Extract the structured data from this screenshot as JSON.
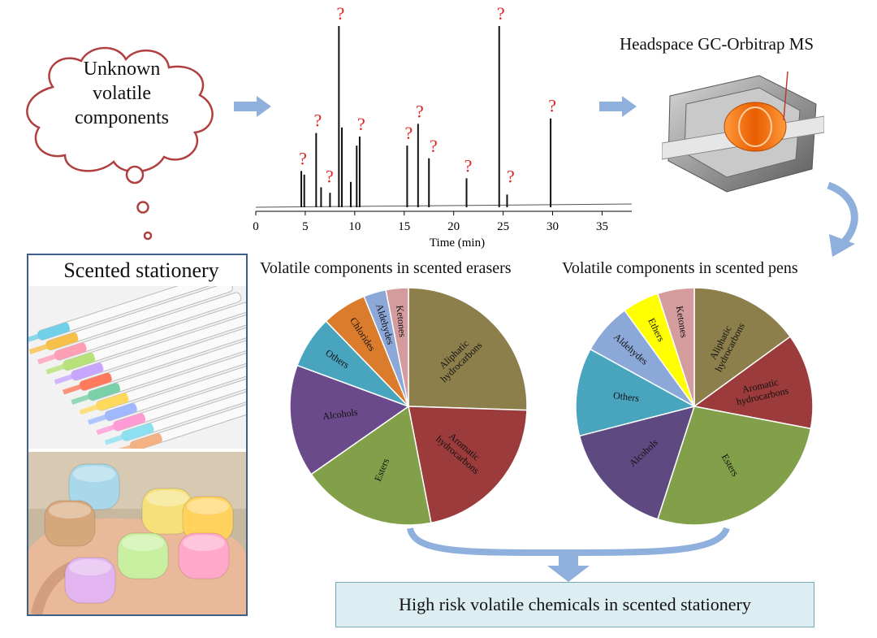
{
  "cloud": {
    "lines": [
      "Unknown",
      "volatile",
      "components"
    ]
  },
  "chromatogram": {
    "xlabel": "Time (min)",
    "xticks": [
      "0",
      "5",
      "10",
      "15",
      "20",
      "25",
      "30",
      "35"
    ],
    "xlim": [
      0,
      38
    ],
    "unknown_marker": "?",
    "peaks": [
      {
        "t": 4.6,
        "h": 0.2
      },
      {
        "t": 4.9,
        "h": 0.18
      },
      {
        "t": 6.1,
        "h": 0.41
      },
      {
        "t": 6.6,
        "h": 0.11
      },
      {
        "t": 7.5,
        "h": 0.08
      },
      {
        "t": 8.4,
        "h": 1.0
      },
      {
        "t": 8.7,
        "h": 0.44
      },
      {
        "t": 9.6,
        "h": 0.14
      },
      {
        "t": 10.2,
        "h": 0.34
      },
      {
        "t": 10.5,
        "h": 0.39
      },
      {
        "t": 15.3,
        "h": 0.34
      },
      {
        "t": 16.4,
        "h": 0.46
      },
      {
        "t": 17.5,
        "h": 0.27
      },
      {
        "t": 21.3,
        "h": 0.16
      },
      {
        "t": 24.6,
        "h": 1.0
      },
      {
        "t": 25.4,
        "h": 0.07
      },
      {
        "t": 29.8,
        "h": 0.49
      }
    ],
    "labeled_peaks": [
      4.6,
      6.1,
      7.3,
      8.4,
      10.5,
      15.3,
      16.4,
      17.8,
      21.3,
      24.6,
      25.6,
      29.8
    ]
  },
  "instrument": {
    "label": "Headspace GC-Orbitrap MS"
  },
  "stationery": {
    "title": "Scented stationery"
  },
  "chart_data": [
    {
      "type": "pie",
      "title": "Volatile components in scented erasers",
      "categories": [
        "Aliphatic hydrocarbons",
        "Aromatic hydrocarbons",
        "Esters",
        "Alcohols",
        "Others",
        "Chlorides",
        "Aldehydes",
        "Ketones"
      ],
      "values": [
        25,
        21,
        18,
        15,
        7,
        6,
        3,
        3
      ],
      "colors": [
        "#8c7f4c",
        "#9c3b3b",
        "#82a049",
        "#6b4a8b",
        "#48a5bd",
        "#db7c2d",
        "#8ba8d8",
        "#d49c9c"
      ],
      "start_angle": 0
    },
    {
      "type": "pie",
      "title": "Volatile components in scented pens",
      "categories": [
        "Aliphatic hydrocarbons",
        "Aromatic hydrocarbons",
        "Esters",
        "Alcohols",
        "Others",
        "Aldehydes",
        "Ethers",
        "Ketones"
      ],
      "values": [
        15,
        13,
        27,
        16,
        12,
        7,
        5,
        5
      ],
      "colors": [
        "#8c7f4c",
        "#9c3b3b",
        "#82a049",
        "#5e4a80",
        "#48a5bd",
        "#8ba8d8",
        "#ffff00",
        "#d49c9c"
      ],
      "start_angle": 0
    }
  ],
  "result": {
    "label": "High risk volatile chemicals in scented stationery"
  }
}
